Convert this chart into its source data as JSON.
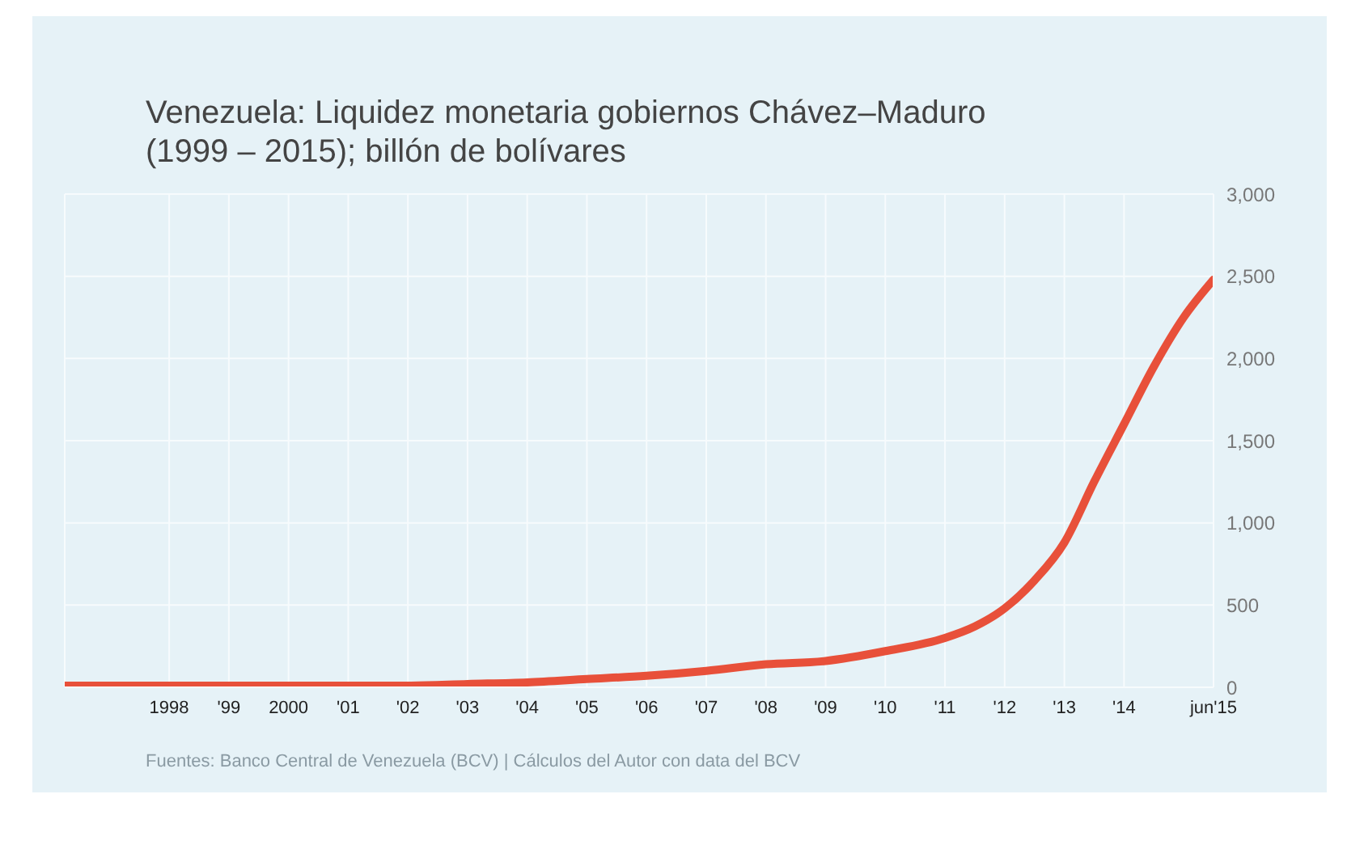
{
  "chart_data": {
    "type": "line",
    "title": "Venezuela: Liquidez monetaria gobiernos Chávez–Maduro (1999 – 2015); billón de bolívares",
    "x": [
      1996.25,
      1998,
      1999,
      2000,
      2001,
      2002,
      2003,
      2004,
      2005,
      2006,
      2007,
      2008,
      2009,
      2010,
      2011,
      2011.5,
      2012,
      2012.5,
      2013,
      2013.5,
      2014,
      2014.5,
      2015,
      2015.5
    ],
    "series": [
      {
        "color": "#e8503a",
        "values": [
          10,
          10,
          10,
          10,
          10,
          10,
          20,
          30,
          50,
          70,
          100,
          140,
          160,
          220,
          300,
          370,
          480,
          650,
          880,
          1250,
          1600,
          1950,
          2250,
          2480
        ]
      }
    ],
    "xlim": [
      1996.25,
      2015.5
    ],
    "xticks": [
      1998,
      {
        "value": 1999,
        "label": "'99"
      },
      2000,
      {
        "value": 2001,
        "label": "'01"
      },
      {
        "value": 2002,
        "label": "'02"
      },
      {
        "value": 2003,
        "label": "'03"
      },
      {
        "value": 2004,
        "label": "'04"
      },
      {
        "value": 2005,
        "label": "'05"
      },
      {
        "value": 2006,
        "label": "'06"
      },
      {
        "value": 2007,
        "label": "'07"
      },
      {
        "value": 2008,
        "label": "'08"
      },
      {
        "value": 2009,
        "label": "'09"
      },
      {
        "value": 2010,
        "label": "'10"
      },
      {
        "value": 2011,
        "label": "'11"
      },
      {
        "value": 2012,
        "label": "'12"
      },
      {
        "value": 2013,
        "label": "'13"
      },
      {
        "value": 2014,
        "label": "'14"
      },
      {
        "value": 2015.5,
        "label": "jun'15"
      }
    ],
    "ylim": [
      0,
      3000
    ],
    "yticks": [
      0,
      500,
      {
        "value": 1000,
        "label": "1,000"
      },
      {
        "value": 1500,
        "label": "1,500"
      },
      {
        "value": 2000,
        "label": "2,000"
      },
      {
        "value": 2500,
        "label": "2,500"
      },
      {
        "value": 3000,
        "label": "3,000"
      }
    ],
    "grid": true,
    "marker": "none",
    "line_style": "solid",
    "annotations": [
      "Fuentes: Banco Central de Venezuela (BCV) | Cálculos del Autor con data del BCV"
    ]
  }
}
